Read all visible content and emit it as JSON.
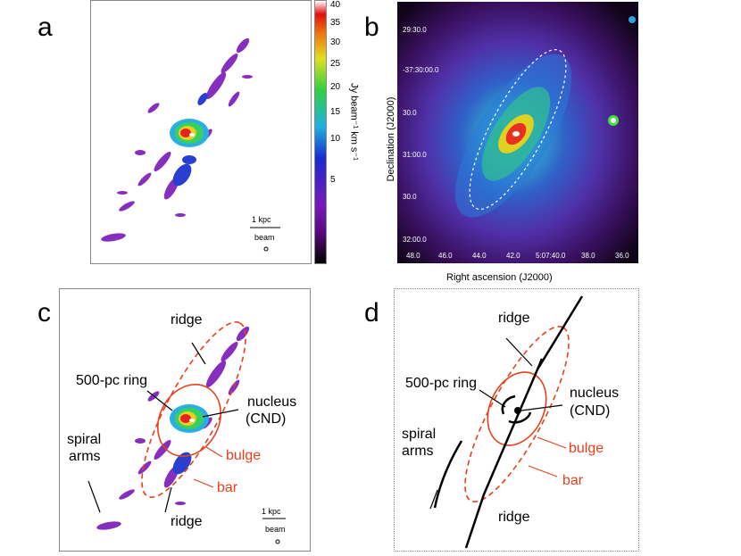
{
  "panels": {
    "a": {
      "letter": "a"
    },
    "b": {
      "letter": "b"
    },
    "c": {
      "letter": "c"
    },
    "d": {
      "letter": "d"
    }
  },
  "colorbar": {
    "ticks": [
      "40",
      "35",
      "30",
      "25",
      "20",
      "15",
      "10",
      "5"
    ],
    "label": "Jy beam⁻¹ km s⁻¹"
  },
  "scalebar": {
    "size_label": "1 kpc",
    "beam_label": "beam"
  },
  "panel_b": {
    "dec_ticks": [
      "29:30.0",
      "-37:30:00.0",
      "30.0",
      "31:00.0",
      "30.0",
      "32:00.0"
    ],
    "ra_ticks": [
      "48.0",
      "46.0",
      "44.0",
      "42.0",
      "5:07:40.0",
      "38.0",
      "36.0"
    ],
    "ylabel": "Declination (J2000)",
    "xlabel": "Right ascension (J2000)"
  },
  "annotations": {
    "ridge": "ridge",
    "ring": "500-pc ring",
    "nucleus": "nucleus",
    "cnd": "(CND)",
    "spiral": "spiral",
    "arms": "arms",
    "bulge": "bulge",
    "bar": "bar"
  },
  "colors": {
    "red": "#e8401c",
    "black": "#000000"
  }
}
